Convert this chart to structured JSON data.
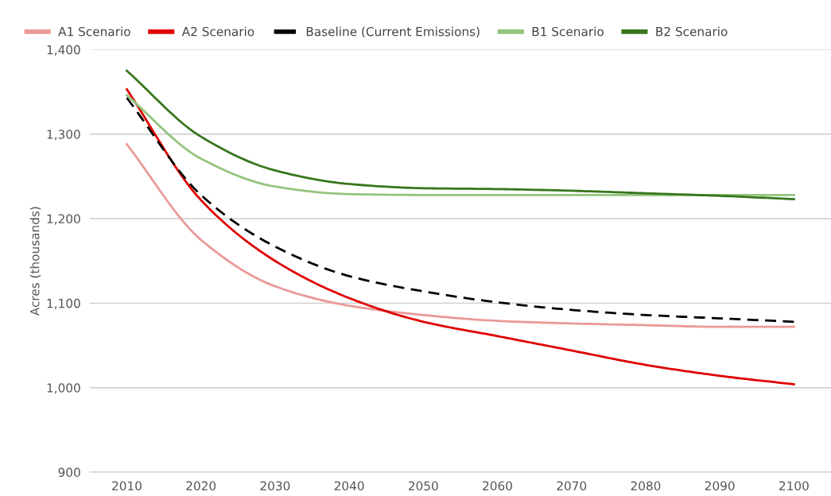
{
  "chart_data": {
    "type": "line",
    "ylabel": "Acres (thousands)",
    "x": [
      2010,
      2020,
      2030,
      2040,
      2050,
      2060,
      2070,
      2080,
      2090,
      2100
    ],
    "xlim": [
      2005,
      2105
    ],
    "xticks": [
      2010,
      2020,
      2030,
      2040,
      2050,
      2060,
      2070,
      2080,
      2090,
      2100
    ],
    "ylim": [
      900,
      1400
    ],
    "yticks": [
      {
        "value": 900,
        "label": "900"
      },
      {
        "value": 1000,
        "label": "1,000"
      },
      {
        "value": 1100,
        "label": "1,100"
      },
      {
        "value": 1200,
        "label": "1,200"
      },
      {
        "value": 1300,
        "label": "1,300"
      },
      {
        "value": 1400,
        "label": "1,400"
      }
    ],
    "grid": "y",
    "legend": "top",
    "marker": "none",
    "series": [
      {
        "name": "A1 Scenario",
        "color": "#ea9999",
        "values": [
          1288,
          1175,
          1120,
          1097,
          1086,
          1079,
          1076,
          1074,
          1072,
          1072
        ]
      },
      {
        "name": "A2 Scenario",
        "color": "#e00000",
        "values": [
          1353,
          1222,
          1150,
          1106,
          1078,
          1061,
          1044,
          1027,
          1014,
          1004
        ]
      },
      {
        "name": "Baseline (Current Emissions)",
        "color": "#000000",
        "line_style": "dashed",
        "values": [
          1343,
          1228,
          1167,
          1132,
          1114,
          1101,
          1092,
          1086,
          1082,
          1078
        ]
      },
      {
        "name": "B1 Scenario",
        "color": "#93c47d",
        "values": [
          1346,
          1271,
          1238,
          1229,
          1228,
          1228,
          1228,
          1228,
          1228,
          1228
        ]
      },
      {
        "name": "B2 Scenario",
        "color": "#38761d",
        "values": [
          1375,
          1297,
          1257,
          1241,
          1236,
          1235,
          1233,
          1230,
          1227,
          1223
        ]
      }
    ]
  }
}
